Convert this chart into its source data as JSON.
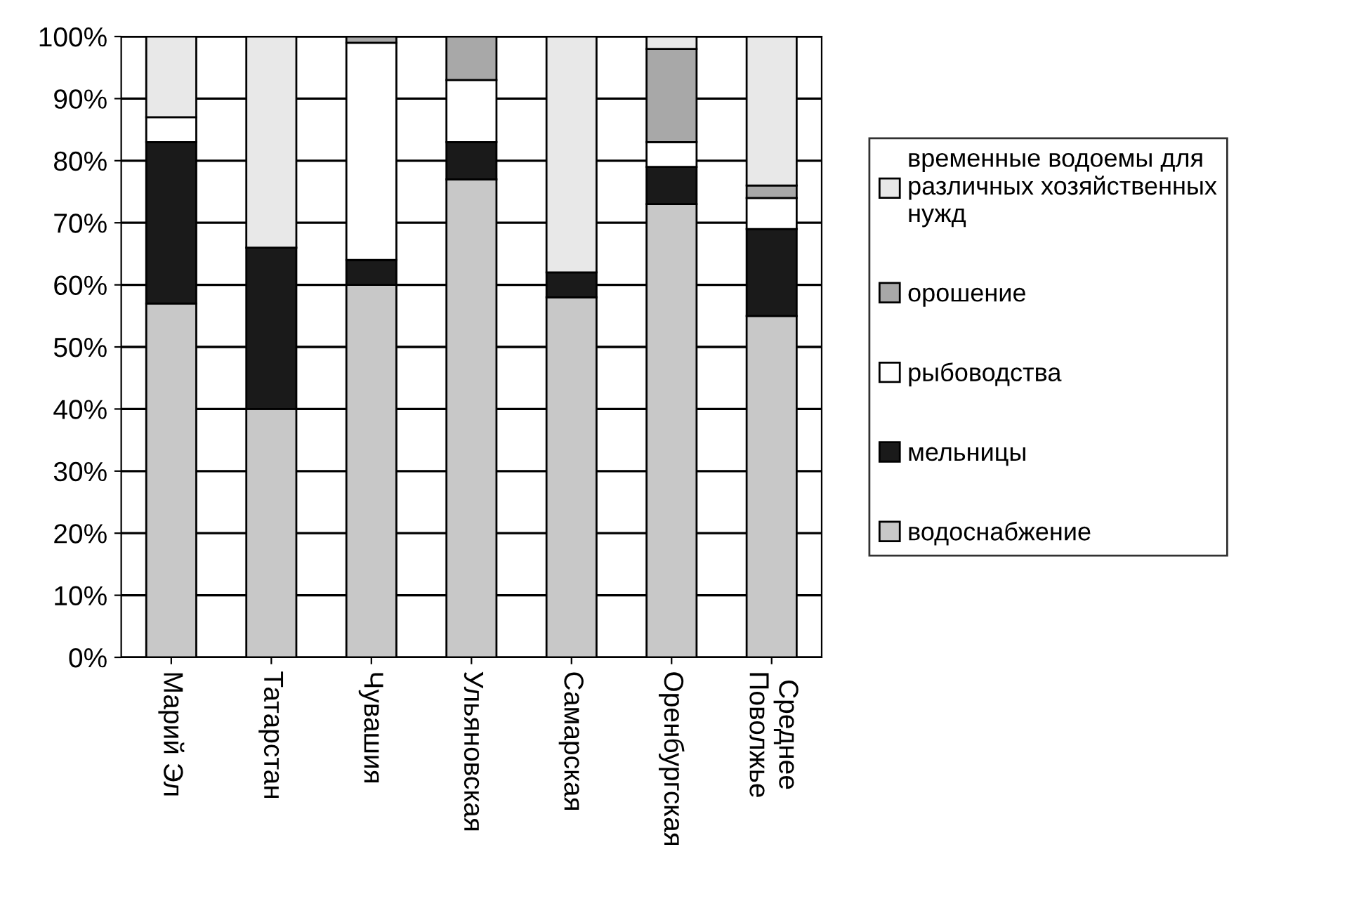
{
  "chart_data": {
    "type": "bar",
    "stacked": true,
    "categories": [
      "Марий Эл",
      "Татарстан",
      "Чувашия",
      "Ульяновская",
      "Самарская",
      "Оренбургская",
      "Среднее\nПоволжье"
    ],
    "series": [
      {
        "name": "водоснабжение",
        "color": "#c8c8c8",
        "values": [
          57,
          40,
          60,
          77,
          58,
          73,
          55
        ]
      },
      {
        "name": "мельницы",
        "color": "#1a1a1a",
        "values": [
          26,
          26,
          4,
          6,
          4,
          6,
          14
        ]
      },
      {
        "name": "рыбоводства",
        "color": "#ffffff",
        "values": [
          4,
          0,
          35,
          10,
          0,
          4,
          5
        ]
      },
      {
        "name": "орошение",
        "color": "#a8a8a8",
        "values": [
          0,
          0,
          1,
          7,
          0,
          15,
          2
        ]
      },
      {
        "name": "временные водоемы для\nразличных хозяйственных\nнужд",
        "color": "#e8e8e8",
        "values": [
          13,
          34,
          0,
          0,
          38,
          2,
          24
        ]
      }
    ],
    "ylim": [
      0,
      100
    ],
    "yticks": [
      {
        "value": 0,
        "label": "0%"
      },
      {
        "value": 10,
        "label": "10%"
      },
      {
        "value": 20,
        "label": "20%"
      },
      {
        "value": 30,
        "label": "30%"
      },
      {
        "value": 40,
        "label": "40%"
      },
      {
        "value": 50,
        "label": "50%"
      },
      {
        "value": 60,
        "label": "60%"
      },
      {
        "value": 70,
        "label": "70%"
      },
      {
        "value": 80,
        "label": "80%"
      },
      {
        "value": 90,
        "label": "90%"
      },
      {
        "value": 100,
        "label": "100%"
      }
    ],
    "grid": "y",
    "legend": "right"
  }
}
